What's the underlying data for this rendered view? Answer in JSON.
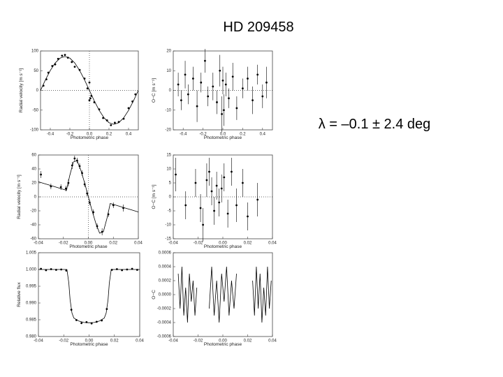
{
  "title": "HD 209458",
  "annotation": "λ = –0.1 ± 2.4 deg",
  "chart_data": [
    {
      "type": "scatter",
      "xlabel": "Photometric phase",
      "ylabel": "Radial velocity [m s⁻¹]",
      "xlim": [
        -0.5,
        0.5
      ],
      "ylim": [
        -100,
        100
      ],
      "xticks": [
        -0.4,
        -0.2,
        {
          "value": 0,
          "label": "0.0"
        },
        0.2,
        0.4
      ],
      "yticks": [
        100,
        50,
        0,
        -50,
        -100
      ],
      "hlines": [
        0
      ],
      "vlines": [
        0
      ],
      "series": [
        {
          "mode": "markers",
          "color": "#000000",
          "x": [
            -0.47,
            -0.44,
            -0.42,
            -0.38,
            -0.35,
            -0.32,
            -0.28,
            -0.25,
            -0.22,
            -0.18,
            -0.15,
            -0.1,
            -0.05,
            -0.02,
            0,
            0,
            0.01,
            0.02,
            0.05,
            0.1,
            0.14,
            0.18,
            0.22,
            0.26,
            0.3,
            0.35,
            0.4,
            0.44,
            0.47
          ],
          "values": [
            12,
            28,
            45,
            62,
            66,
            80,
            88,
            90,
            83,
            72,
            60,
            52,
            30,
            5,
            20,
            -25,
            -20,
            -14,
            -30,
            -48,
            -70,
            -76,
            -88,
            -82,
            -80,
            -72,
            -45,
            -28,
            -10
          ]
        },
        {
          "mode": "line",
          "color": "#000000",
          "x": [
            -0.5,
            -0.45,
            -0.4,
            -0.35,
            -0.3,
            -0.25,
            -0.2,
            -0.15,
            -0.1,
            -0.05,
            0,
            0.05,
            0.1,
            0.15,
            0.2,
            0.25,
            0.3,
            0.35,
            0.4,
            0.45,
            0.5
          ],
          "values": [
            0,
            26.6,
            50.6,
            69.6,
            81.8,
            86,
            81.8,
            69.6,
            50.6,
            26.6,
            0,
            -26.6,
            -50.6,
            -69.6,
            -81.8,
            -86,
            -81.8,
            -69.6,
            -50.6,
            -26.6,
            0
          ]
        }
      ]
    },
    {
      "type": "scatter",
      "xlabel": "Photometric phase",
      "ylabel": "O−C [m s⁻¹]",
      "xlim": [
        -0.5,
        0.5
      ],
      "ylim": [
        -20,
        20
      ],
      "xticks": [
        -0.4,
        -0.2,
        {
          "value": 0,
          "label": "0.0"
        },
        0.2,
        0.4
      ],
      "yticks": [
        20,
        10,
        0,
        -10,
        -20
      ],
      "hlines": [
        0
      ],
      "series": [
        {
          "mode": "markers",
          "color": "#000000",
          "x": [
            -0.45,
            -0.42,
            -0.38,
            -0.35,
            -0.3,
            -0.26,
            -0.22,
            -0.18,
            -0.15,
            -0.1,
            -0.06,
            -0.03,
            -0.01,
            0,
            0.01,
            0.03,
            0.06,
            0.1,
            0.14,
            0.2,
            0.25,
            0.3,
            0.35,
            0.4,
            0.44
          ],
          "values": [
            3,
            -5,
            8,
            -2,
            6,
            -8,
            4,
            15,
            -3,
            2,
            -6,
            10,
            -12,
            5,
            -10,
            3,
            -4,
            7,
            -9,
            1,
            6,
            -5,
            8,
            -3,
            4
          ],
          "errors": [
            6,
            5,
            7,
            5,
            6,
            8,
            5,
            6,
            5,
            7,
            6,
            8,
            9,
            7,
            8,
            6,
            5,
            7,
            6,
            5,
            6,
            7,
            5,
            6,
            8
          ]
        }
      ]
    },
    {
      "type": "scatter",
      "xlabel": "Photometric phase",
      "ylabel": "Radial velocity [m s⁻¹]",
      "xlim": [
        -0.04,
        0.04
      ],
      "ylim": [
        -60,
        60
      ],
      "xticks": [
        -0.04,
        -0.02,
        {
          "value": 0,
          "label": "0.00"
        },
        0.02,
        0.04
      ],
      "yticks": [
        60,
        40,
        20,
        0,
        -20,
        -40,
        -60
      ],
      "hlines": [
        0
      ],
      "vlines": [
        0
      ],
      "series": [
        {
          "mode": "markers",
          "color": "#000000",
          "x": [
            -0.038,
            -0.03,
            -0.022,
            -0.018,
            -0.016,
            -0.013,
            -0.011,
            -0.009,
            -0.007,
            -0.005,
            -0.003,
            -0.001,
            0.001,
            0.004,
            0.007,
            0.011,
            0.016,
            0.02,
            0.028
          ],
          "values": [
            32,
            15,
            14,
            12,
            20,
            45,
            55,
            52,
            44,
            34,
            18,
            5,
            -8,
            -22,
            -42,
            -50,
            -25,
            -12,
            -16
          ],
          "errors": [
            5,
            4,
            4,
            4,
            5,
            5,
            4,
            4,
            4,
            4,
            4,
            4,
            4,
            4,
            4,
            5,
            4,
            4,
            5
          ]
        },
        {
          "mode": "line",
          "color": "#000000",
          "x": [
            -0.04,
            -0.035,
            -0.03,
            -0.025,
            -0.02,
            -0.0175,
            -0.015,
            -0.012,
            -0.009,
            -0.006,
            -0.003,
            0,
            0.003,
            0.006,
            0.009,
            0.012,
            0.015,
            0.0175,
            0.02,
            0.025,
            0.03,
            0.035,
            0.04
          ],
          "values": [
            21.6,
            18.9,
            16.2,
            13.5,
            10.8,
            9.5,
            30,
            50,
            52,
            38,
            20,
            0,
            -20,
            -38,
            -52,
            -50,
            -30,
            -9.5,
            -10.8,
            -13.5,
            -16.2,
            -18.9,
            -21.6
          ]
        }
      ]
    },
    {
      "type": "scatter",
      "xlabel": "Photometric phase",
      "ylabel": "O−C [m s⁻¹]",
      "xlim": [
        -0.04,
        0.04
      ],
      "ylim": [
        -15,
        15
      ],
      "xticks": [
        -0.04,
        -0.02,
        {
          "value": 0,
          "label": "0.00"
        },
        0.02,
        0.04
      ],
      "yticks": [
        15,
        10,
        5,
        0,
        -5,
        -10,
        -15
      ],
      "hlines": [
        0
      ],
      "series": [
        {
          "mode": "markers",
          "color": "#000000",
          "x": [
            -0.038,
            -0.03,
            -0.022,
            -0.018,
            -0.016,
            -0.013,
            -0.011,
            -0.009,
            -0.007,
            -0.005,
            -0.003,
            -0.001,
            0.001,
            0.004,
            0.007,
            0.011,
            0.016,
            0.02,
            0.028
          ],
          "values": [
            8,
            -3,
            5,
            -4,
            -10,
            6,
            9,
            2,
            -5,
            4,
            -2,
            3,
            7,
            -6,
            9,
            -3,
            5,
            -7,
            -1
          ],
          "errors": [
            6,
            5,
            5,
            5,
            6,
            6,
            5,
            5,
            5,
            5,
            5,
            5,
            5,
            5,
            5,
            6,
            5,
            5,
            6
          ]
        }
      ]
    },
    {
      "type": "scatter",
      "xlabel": "Photometric phase",
      "ylabel": "Relative flux",
      "xlim": [
        -0.04,
        0.04
      ],
      "ylim": [
        0.98,
        1.005
      ],
      "xticks": [
        -0.04,
        -0.02,
        {
          "value": 0,
          "label": "0.00"
        },
        0.02,
        0.04
      ],
      "yticks": [
        1.005,
        {
          "value": 1,
          "label": "1.000"
        },
        0.995,
        {
          "value": 0.99,
          "label": "0.990"
        },
        0.985,
        {
          "value": 0.98,
          "label": "0.980"
        }
      ],
      "series": [
        {
          "mode": "markers",
          "color": "#000000",
          "x": [
            -0.038,
            -0.034,
            -0.03,
            -0.026,
            -0.022,
            -0.018,
            -0.014,
            -0.01,
            -0.006,
            -0.002,
            0.002,
            0.006,
            0.01,
            0.014,
            0.018,
            0.022,
            0.026,
            0.03,
            0.034,
            0.038
          ],
          "values": [
            1.0002,
            0.9998,
            1.0001,
            0.9999,
            1,
            0.9997,
            0.988,
            0.9849,
            0.984,
            0.9843,
            0.9839,
            0.9844,
            0.9848,
            0.9882,
            0.9999,
            1.0001,
            0.9998,
            1,
            1.0002,
            0.9999
          ]
        },
        {
          "mode": "line",
          "color": "#000000",
          "x": [
            -0.04,
            -0.02,
            -0.0175,
            -0.016,
            -0.015,
            -0.0135,
            -0.012,
            -0.008,
            -0.004,
            0,
            0.004,
            0.008,
            0.012,
            0.0135,
            0.015,
            0.016,
            0.0175,
            0.02,
            0.04
          ],
          "values": [
            1,
            1,
            1,
            0.996,
            0.991,
            0.987,
            0.9855,
            0.9846,
            0.9842,
            0.9841,
            0.9842,
            0.9846,
            0.9855,
            0.987,
            0.991,
            0.996,
            1,
            1,
            1
          ]
        }
      ]
    },
    {
      "type": "scatter",
      "xlabel": "Photometric phase",
      "ylabel": "O−C",
      "xlim": [
        -0.04,
        0.04
      ],
      "ylim": [
        -0.0006,
        0.0006
      ],
      "xticks": [
        -0.04,
        -0.02,
        {
          "value": 0,
          "label": "0.00"
        },
        0.02,
        0.04
      ],
      "yticks": [
        0.0006,
        0.0004,
        0.0002,
        {
          "value": 0,
          "label": "0.0000"
        },
        -0.0002,
        -0.0004,
        -0.0006
      ],
      "series": [
        {
          "mode": "line",
          "color": "#000000",
          "x": [
            -0.036,
            -0.0345,
            -0.033,
            -0.0315,
            -0.03,
            -0.0285,
            -0.027,
            -0.0255,
            -0.024,
            -0.0225,
            -0.021,
            -0.016,
            -0.011,
            -0.009,
            -0.007,
            -0.005,
            -0.003,
            -0.001,
            0.001,
            0.003,
            0.005,
            0.007,
            0.009,
            0.011,
            0.0175,
            0.024,
            0.0255,
            0.027,
            0.0285,
            0.03,
            0.0315,
            0.033,
            0.0345,
            0.036,
            0.0375,
            0.039
          ],
          "values": [
            0.0003,
            -0.0002,
            0.0004,
            -0.0003,
            0.0001,
            -0.0004,
            0.0003,
            -0.0001,
            0.0002,
            -0.0003,
            0.0001,
            null,
            -0.0002,
            0.0004,
            -0.0003,
            0.0002,
            -0.0004,
            0.0003,
            -0.0001,
            0.0004,
            -0.0003,
            0.0002,
            -0.0002,
            0.0003,
            null,
            0.0002,
            -0.0003,
            0.0004,
            -0.0002,
            0.0003,
            -0.0004,
            0.0001,
            -0.0003,
            0.0004,
            -0.0002,
            0.0002
          ]
        }
      ]
    }
  ]
}
